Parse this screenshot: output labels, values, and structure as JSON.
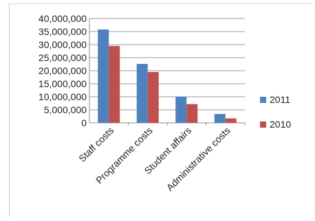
{
  "chart_data": {
    "type": "bar",
    "categories": [
      "Staff costs",
      "Programme costs",
      "Student affairs",
      "Administrative costs"
    ],
    "series": [
      {
        "name": "2011",
        "color": "#4f81bd",
        "values": [
          35800000,
          22600000,
          10000000,
          3400000
        ]
      },
      {
        "name": "2010",
        "color": "#c0504d",
        "values": [
          29500000,
          19500000,
          7200000,
          1700000
        ]
      }
    ],
    "y_ticks": [
      "0",
      "5,000,000",
      "10,000,000",
      "15,000,000",
      "20,000,000",
      "25,000,000",
      "30,000,000",
      "35,000,000",
      "40,000,000"
    ],
    "ylim": [
      0,
      40000000
    ],
    "grid": true,
    "legend": "right"
  }
}
